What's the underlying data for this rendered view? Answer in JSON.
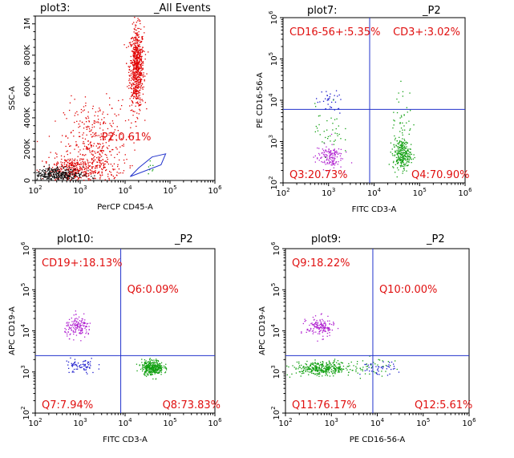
{
  "colors": {
    "gate_line": "#2233cc",
    "quadrant_label": "#e01010",
    "red": "#e00000",
    "black": "#111111",
    "green": "#12a012",
    "blue": "#1a1acc",
    "purple": "#b020d0"
  },
  "chart_data": [
    {
      "id": "plot3",
      "type": "scatter",
      "title_left": "plot3:",
      "title_right": "_All Events",
      "xlabel": "PerCP   CD45-A",
      "ylabel": "SSC-A",
      "x_scale": "log",
      "xlim": [
        100,
        1000000
      ],
      "x_ticks": [
        {
          "base": "10",
          "exp": "2"
        },
        {
          "base": "10",
          "exp": "3"
        },
        {
          "base": "10",
          "exp": "4"
        },
        {
          "base": "10",
          "exp": "5"
        },
        {
          "base": "10",
          "exp": "6"
        }
      ],
      "y_scale": "linear",
      "ylim": [
        0,
        1050000
      ],
      "y_ticks": [
        "0",
        "200K",
        "400K",
        "600K",
        "800K",
        "1M"
      ],
      "gate_label": "P2:0.61%",
      "gate_polygon": [
        [
          13000,
          25000
        ],
        [
          63000,
          100000
        ],
        [
          80000,
          170000
        ],
        [
          40000,
          150000
        ],
        [
          20000,
          80000
        ]
      ],
      "clusters": [
        {
          "color": "red",
          "count": 700,
          "cx": 4.25,
          "sx": 0.08,
          "cy": 720000,
          "sy": 130000
        },
        {
          "color": "red",
          "count": 380,
          "cx": 3.35,
          "sx": 0.35,
          "cy": 230000,
          "sy": 140000
        },
        {
          "color": "red",
          "count": 420,
          "cx": 2.85,
          "sx": 0.35,
          "cy": 70000,
          "sy": 45000
        },
        {
          "color": "black",
          "count": 380,
          "cx": 2.45,
          "sx": 0.3,
          "cy": 40000,
          "sy": 25000
        },
        {
          "color": "green",
          "count": 8,
          "cx": 4.6,
          "sx": 0.15,
          "cy": 100000,
          "sy": 20000
        }
      ]
    },
    {
      "id": "plot7",
      "type": "scatter",
      "title_left": "plot7:",
      "title_right": "_P2",
      "xlabel": "FITC   CD3-A",
      "ylabel": "PE   CD16-56-A",
      "x_scale": "log",
      "xlim": [
        100,
        1000000
      ],
      "x_ticks": [
        {
          "base": "10",
          "exp": "2"
        },
        {
          "base": "10",
          "exp": "3"
        },
        {
          "base": "10",
          "exp": "4"
        },
        {
          "base": "10",
          "exp": "5"
        },
        {
          "base": "10",
          "exp": "6"
        }
      ],
      "y_scale": "log",
      "ylim": [
        100,
        1000000
      ],
      "y_ticks": [
        {
          "base": "10",
          "exp": "2"
        },
        {
          "base": "10",
          "exp": "3"
        },
        {
          "base": "10",
          "exp": "4"
        },
        {
          "base": "10",
          "exp": "5"
        },
        {
          "base": "10",
          "exp": "6"
        }
      ],
      "divider": {
        "x": 8000,
        "y": 6000
      },
      "quadrants": [
        {
          "label": "CD16-56+:5.35%",
          "position": "top-left"
        },
        {
          "label": "CD3+:3.02%",
          "position": "top-right"
        },
        {
          "label": "Q3:20.73%",
          "position": "bottom-left"
        },
        {
          "label": "Q4:70.90%",
          "position": "bottom-right"
        }
      ],
      "clusters": [
        {
          "color": "green",
          "count": 260,
          "cx": 4.6,
          "sx": 0.1,
          "cy": 2.7,
          "sy": 0.18
        },
        {
          "color": "purple",
          "count": 140,
          "cx": 3.0,
          "sx": 0.15,
          "cy": 2.65,
          "sy": 0.15
        },
        {
          "color": "blue",
          "count": 35,
          "cx": 3.0,
          "sx": 0.15,
          "cy": 3.95,
          "sy": 0.15
        },
        {
          "color": "green",
          "count": 40,
          "cx": 3.0,
          "sx": 0.15,
          "cy": 3.3,
          "sy": 0.3
        },
        {
          "color": "green",
          "count": 40,
          "cx": 4.6,
          "sx": 0.12,
          "cy": 3.6,
          "sy": 0.4
        }
      ]
    },
    {
      "id": "plot10",
      "type": "scatter",
      "title_left": "plot10:",
      "title_right": "_P2",
      "xlabel": "FITC   CD3-A",
      "ylabel": "APC   CD19-A",
      "x_scale": "log",
      "xlim": [
        100,
        1000000
      ],
      "x_ticks": [
        {
          "base": "10",
          "exp": "2"
        },
        {
          "base": "10",
          "exp": "3"
        },
        {
          "base": "10",
          "exp": "4"
        },
        {
          "base": "10",
          "exp": "5"
        },
        {
          "base": "10",
          "exp": "6"
        }
      ],
      "y_scale": "log",
      "ylim": [
        100,
        1000000
      ],
      "y_ticks": [
        {
          "base": "10",
          "exp": "2"
        },
        {
          "base": "10",
          "exp": "3"
        },
        {
          "base": "10",
          "exp": "4"
        },
        {
          "base": "10",
          "exp": "5"
        },
        {
          "base": "10",
          "exp": "6"
        }
      ],
      "divider": {
        "x": 8000,
        "y": 2500
      },
      "quadrants": [
        {
          "label": "CD19+:18.13%",
          "position": "top-left"
        },
        {
          "label": "Q6:0.09%",
          "position": "top-right"
        },
        {
          "label": "Q7:7.94%",
          "position": "bottom-left"
        },
        {
          "label": "Q8:73.83%",
          "position": "bottom-right"
        }
      ],
      "clusters": [
        {
          "color": "green",
          "count": 340,
          "cx": 4.6,
          "sx": 0.12,
          "cy": 3.12,
          "sy": 0.09
        },
        {
          "color": "purple",
          "count": 150,
          "cx": 2.95,
          "sx": 0.15,
          "cy": 4.1,
          "sy": 0.12
        },
        {
          "color": "blue",
          "count": 70,
          "cx": 3.0,
          "sx": 0.18,
          "cy": 3.15,
          "sy": 0.1
        }
      ]
    },
    {
      "id": "plot9",
      "type": "scatter",
      "title_left": "plot9:",
      "title_right": "_P2",
      "xlabel": "PE      CD16-56-A",
      "ylabel": "APC   CD19-A",
      "x_scale": "log",
      "xlim": [
        100,
        1000000
      ],
      "x_ticks": [
        {
          "base": "10",
          "exp": "2"
        },
        {
          "base": "10",
          "exp": "3"
        },
        {
          "base": "10",
          "exp": "4"
        },
        {
          "base": "10",
          "exp": "5"
        },
        {
          "base": "10",
          "exp": "6"
        }
      ],
      "y_scale": "log",
      "ylim": [
        100,
        1000000
      ],
      "y_ticks": [
        {
          "base": "10",
          "exp": "2"
        },
        {
          "base": "10",
          "exp": "3"
        },
        {
          "base": "10",
          "exp": "4"
        },
        {
          "base": "10",
          "exp": "5"
        },
        {
          "base": "10",
          "exp": "6"
        }
      ],
      "divider": {
        "x": 8000,
        "y": 2500
      },
      "quadrants": [
        {
          "label": "Q9:18.22%",
          "position": "top-left"
        },
        {
          "label": "Q10:0.00%",
          "position": "top-right"
        },
        {
          "label": "Q11:76.17%",
          "position": "bottom-left"
        },
        {
          "label": "Q12:5.61%",
          "position": "bottom-right"
        }
      ],
      "clusters": [
        {
          "color": "green",
          "count": 360,
          "cx": 2.8,
          "sx": 0.32,
          "cy": 3.1,
          "sy": 0.08
        },
        {
          "color": "purple",
          "count": 150,
          "cx": 2.75,
          "sx": 0.15,
          "cy": 4.1,
          "sy": 0.12
        },
        {
          "color": "blue",
          "count": 45,
          "cx": 4.0,
          "sx": 0.2,
          "cy": 3.1,
          "sy": 0.08
        },
        {
          "color": "green",
          "count": 30,
          "cx": 3.95,
          "sx": 0.25,
          "cy": 3.15,
          "sy": 0.1
        }
      ]
    }
  ]
}
